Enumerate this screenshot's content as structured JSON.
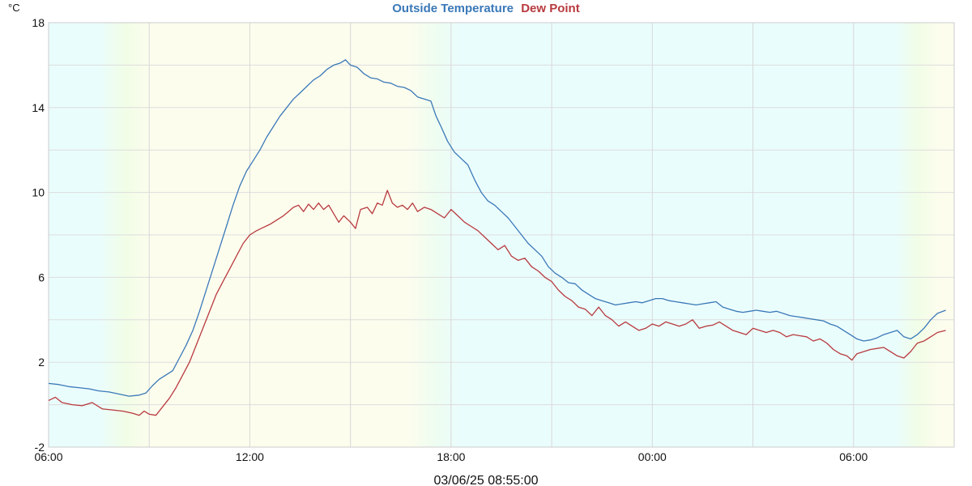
{
  "chart_data": {
    "type": "line",
    "title_parts": [
      {
        "text": "Outside Temperature",
        "color": "#3a78b8"
      },
      {
        "text": "Dew Point",
        "color": "#b83a3e"
      }
    ],
    "ylabel": "°C",
    "ylim": [
      -2,
      18
    ],
    "yticks": [
      "18",
      "14",
      "10",
      "6",
      "2",
      "-2"
    ],
    "ytick_values": [
      18,
      14,
      10,
      6,
      2,
      -2
    ],
    "xlim": [
      "06:00",
      "09:00 +1d"
    ],
    "xticks": [
      "06:00",
      "12:00",
      "18:00",
      "00:00",
      "06:00"
    ],
    "xtick_hours": [
      0,
      6,
      12,
      18,
      24
    ],
    "footer": "03/06/25 08:55:00",
    "grid": true,
    "legend": "top-center",
    "hours_span": 27,
    "x_unit": "hours since 06:00",
    "series": [
      {
        "name": "Outside Temperature",
        "color": "#3a78b8",
        "points": [
          [
            0,
            1.0
          ],
          [
            0.3,
            0.95
          ],
          [
            0.6,
            0.85
          ],
          [
            0.9,
            0.8
          ],
          [
            1.2,
            0.75
          ],
          [
            1.5,
            0.65
          ],
          [
            1.8,
            0.6
          ],
          [
            2.1,
            0.5
          ],
          [
            2.4,
            0.4
          ],
          [
            2.7,
            0.45
          ],
          [
            2.9,
            0.55
          ],
          [
            3.1,
            0.9
          ],
          [
            3.3,
            1.2
          ],
          [
            3.5,
            1.4
          ],
          [
            3.7,
            1.6
          ],
          [
            3.9,
            2.2
          ],
          [
            4.1,
            2.8
          ],
          [
            4.3,
            3.5
          ],
          [
            4.5,
            4.4
          ],
          [
            4.7,
            5.4
          ],
          [
            4.9,
            6.4
          ],
          [
            5.1,
            7.4
          ],
          [
            5.3,
            8.4
          ],
          [
            5.5,
            9.4
          ],
          [
            5.7,
            10.3
          ],
          [
            5.9,
            11.0
          ],
          [
            6.1,
            11.5
          ],
          [
            6.3,
            12.0
          ],
          [
            6.5,
            12.6
          ],
          [
            6.7,
            13.1
          ],
          [
            6.9,
            13.6
          ],
          [
            7.1,
            14.0
          ],
          [
            7.3,
            14.4
          ],
          [
            7.5,
            14.7
          ],
          [
            7.7,
            15.0
          ],
          [
            7.9,
            15.3
          ],
          [
            8.1,
            15.5
          ],
          [
            8.3,
            15.8
          ],
          [
            8.5,
            16.0
          ],
          [
            8.7,
            16.1
          ],
          [
            8.85,
            16.25
          ],
          [
            9.0,
            16.0
          ],
          [
            9.2,
            15.9
          ],
          [
            9.4,
            15.6
          ],
          [
            9.6,
            15.4
          ],
          [
            9.8,
            15.35
          ],
          [
            10.0,
            15.2
          ],
          [
            10.2,
            15.15
          ],
          [
            10.4,
            15.0
          ],
          [
            10.6,
            14.95
          ],
          [
            10.8,
            14.8
          ],
          [
            11.0,
            14.5
          ],
          [
            11.2,
            14.4
          ],
          [
            11.4,
            14.3
          ],
          [
            11.55,
            13.6
          ],
          [
            11.7,
            13.1
          ],
          [
            11.9,
            12.4
          ],
          [
            12.1,
            11.9
          ],
          [
            12.3,
            11.6
          ],
          [
            12.5,
            11.3
          ],
          [
            12.7,
            10.6
          ],
          [
            12.9,
            10.0
          ],
          [
            13.1,
            9.6
          ],
          [
            13.3,
            9.4
          ],
          [
            13.5,
            9.1
          ],
          [
            13.7,
            8.8
          ],
          [
            13.9,
            8.4
          ],
          [
            14.1,
            8.0
          ],
          [
            14.3,
            7.6
          ],
          [
            14.5,
            7.3
          ],
          [
            14.7,
            7.0
          ],
          [
            14.9,
            6.5
          ],
          [
            15.1,
            6.2
          ],
          [
            15.3,
            6.0
          ],
          [
            15.5,
            5.75
          ],
          [
            15.7,
            5.7
          ],
          [
            15.9,
            5.4
          ],
          [
            16.1,
            5.2
          ],
          [
            16.3,
            5.0
          ],
          [
            16.5,
            4.9
          ],
          [
            16.7,
            4.8
          ],
          [
            16.9,
            4.7
          ],
          [
            17.1,
            4.75
          ],
          [
            17.3,
            4.8
          ],
          [
            17.5,
            4.85
          ],
          [
            17.7,
            4.8
          ],
          [
            17.9,
            4.9
          ],
          [
            18.1,
            5.0
          ],
          [
            18.3,
            5.0
          ],
          [
            18.5,
            4.9
          ],
          [
            18.7,
            4.85
          ],
          [
            18.9,
            4.8
          ],
          [
            19.1,
            4.75
          ],
          [
            19.3,
            4.7
          ],
          [
            19.5,
            4.75
          ],
          [
            19.7,
            4.8
          ],
          [
            19.9,
            4.85
          ],
          [
            20.1,
            4.6
          ],
          [
            20.3,
            4.5
          ],
          [
            20.5,
            4.4
          ],
          [
            20.7,
            4.35
          ],
          [
            20.9,
            4.4
          ],
          [
            21.1,
            4.45
          ],
          [
            21.3,
            4.4
          ],
          [
            21.5,
            4.35
          ],
          [
            21.7,
            4.4
          ],
          [
            21.9,
            4.3
          ],
          [
            22.1,
            4.2
          ],
          [
            22.3,
            4.15
          ],
          [
            22.5,
            4.1
          ],
          [
            22.7,
            4.05
          ],
          [
            22.9,
            4.0
          ],
          [
            23.1,
            3.95
          ],
          [
            23.3,
            3.8
          ],
          [
            23.5,
            3.7
          ],
          [
            23.7,
            3.5
          ],
          [
            23.9,
            3.3
          ],
          [
            24.1,
            3.1
          ],
          [
            24.3,
            3.0
          ],
          [
            24.5,
            3.05
          ],
          [
            24.7,
            3.15
          ],
          [
            24.9,
            3.3
          ],
          [
            25.1,
            3.4
          ],
          [
            25.3,
            3.5
          ],
          [
            25.5,
            3.2
          ],
          [
            25.7,
            3.1
          ],
          [
            25.9,
            3.3
          ],
          [
            26.1,
            3.6
          ],
          [
            26.3,
            4.0
          ],
          [
            26.5,
            4.3
          ],
          [
            26.75,
            4.45
          ]
        ]
      },
      {
        "name": "Dew Point",
        "color": "#b83a3e",
        "points": [
          [
            0,
            0.2
          ],
          [
            0.2,
            0.35
          ],
          [
            0.4,
            0.1
          ],
          [
            0.7,
            0.0
          ],
          [
            1.0,
            -0.05
          ],
          [
            1.3,
            0.1
          ],
          [
            1.6,
            -0.2
          ],
          [
            1.9,
            -0.25
          ],
          [
            2.2,
            -0.3
          ],
          [
            2.5,
            -0.4
          ],
          [
            2.7,
            -0.5
          ],
          [
            2.85,
            -0.3
          ],
          [
            3.0,
            -0.45
          ],
          [
            3.2,
            -0.5
          ],
          [
            3.4,
            -0.1
          ],
          [
            3.6,
            0.3
          ],
          [
            3.8,
            0.8
          ],
          [
            4.0,
            1.4
          ],
          [
            4.2,
            2.0
          ],
          [
            4.4,
            2.8
          ],
          [
            4.6,
            3.6
          ],
          [
            4.8,
            4.4
          ],
          [
            5.0,
            5.2
          ],
          [
            5.2,
            5.8
          ],
          [
            5.4,
            6.4
          ],
          [
            5.6,
            7.0
          ],
          [
            5.8,
            7.6
          ],
          [
            6.0,
            8.0
          ],
          [
            6.2,
            8.2
          ],
          [
            6.4,
            8.35
          ],
          [
            6.6,
            8.5
          ],
          [
            6.8,
            8.7
          ],
          [
            7.0,
            8.9
          ],
          [
            7.15,
            9.1
          ],
          [
            7.3,
            9.3
          ],
          [
            7.45,
            9.4
          ],
          [
            7.6,
            9.1
          ],
          [
            7.75,
            9.45
          ],
          [
            7.9,
            9.2
          ],
          [
            8.05,
            9.5
          ],
          [
            8.2,
            9.2
          ],
          [
            8.35,
            9.4
          ],
          [
            8.5,
            9.0
          ],
          [
            8.65,
            8.6
          ],
          [
            8.8,
            8.9
          ],
          [
            9.0,
            8.6
          ],
          [
            9.15,
            8.3
          ],
          [
            9.3,
            9.2
          ],
          [
            9.5,
            9.3
          ],
          [
            9.65,
            9.0
          ],
          [
            9.8,
            9.5
          ],
          [
            9.95,
            9.4
          ],
          [
            10.1,
            10.1
          ],
          [
            10.25,
            9.5
          ],
          [
            10.4,
            9.3
          ],
          [
            10.55,
            9.4
          ],
          [
            10.7,
            9.2
          ],
          [
            10.85,
            9.5
          ],
          [
            11.0,
            9.1
          ],
          [
            11.2,
            9.3
          ],
          [
            11.4,
            9.2
          ],
          [
            11.6,
            9.0
          ],
          [
            11.8,
            8.8
          ],
          [
            12.0,
            9.2
          ],
          [
            12.2,
            8.9
          ],
          [
            12.4,
            8.6
          ],
          [
            12.6,
            8.4
          ],
          [
            12.8,
            8.2
          ],
          [
            13.0,
            7.9
          ],
          [
            13.2,
            7.6
          ],
          [
            13.4,
            7.3
          ],
          [
            13.6,
            7.5
          ],
          [
            13.8,
            7.0
          ],
          [
            14.0,
            6.8
          ],
          [
            14.2,
            6.9
          ],
          [
            14.4,
            6.5
          ],
          [
            14.6,
            6.3
          ],
          [
            14.8,
            6.0
          ],
          [
            15.0,
            5.8
          ],
          [
            15.2,
            5.4
          ],
          [
            15.4,
            5.1
          ],
          [
            15.6,
            4.9
          ],
          [
            15.8,
            4.6
          ],
          [
            16.0,
            4.5
          ],
          [
            16.2,
            4.2
          ],
          [
            16.4,
            4.6
          ],
          [
            16.6,
            4.2
          ],
          [
            16.8,
            4.0
          ],
          [
            17.0,
            3.7
          ],
          [
            17.2,
            3.9
          ],
          [
            17.4,
            3.7
          ],
          [
            17.6,
            3.5
          ],
          [
            17.8,
            3.6
          ],
          [
            18.0,
            3.8
          ],
          [
            18.2,
            3.7
          ],
          [
            18.4,
            3.9
          ],
          [
            18.6,
            3.8
          ],
          [
            18.8,
            3.7
          ],
          [
            19.0,
            3.8
          ],
          [
            19.2,
            4.0
          ],
          [
            19.4,
            3.6
          ],
          [
            19.6,
            3.7
          ],
          [
            19.8,
            3.75
          ],
          [
            20.0,
            3.9
          ],
          [
            20.2,
            3.7
          ],
          [
            20.4,
            3.5
          ],
          [
            20.6,
            3.4
          ],
          [
            20.8,
            3.3
          ],
          [
            21.0,
            3.6
          ],
          [
            21.2,
            3.5
          ],
          [
            21.4,
            3.4
          ],
          [
            21.6,
            3.5
          ],
          [
            21.8,
            3.4
          ],
          [
            22.0,
            3.2
          ],
          [
            22.2,
            3.3
          ],
          [
            22.4,
            3.25
          ],
          [
            22.6,
            3.2
          ],
          [
            22.8,
            3.0
          ],
          [
            23.0,
            3.1
          ],
          [
            23.2,
            2.9
          ],
          [
            23.4,
            2.6
          ],
          [
            23.6,
            2.4
          ],
          [
            23.8,
            2.3
          ],
          [
            23.95,
            2.1
          ],
          [
            24.1,
            2.4
          ],
          [
            24.3,
            2.5
          ],
          [
            24.5,
            2.6
          ],
          [
            24.7,
            2.65
          ],
          [
            24.9,
            2.7
          ],
          [
            25.1,
            2.5
          ],
          [
            25.3,
            2.3
          ],
          [
            25.5,
            2.2
          ],
          [
            25.7,
            2.5
          ],
          [
            25.9,
            2.9
          ],
          [
            26.1,
            3.0
          ],
          [
            26.3,
            3.2
          ],
          [
            26.5,
            3.4
          ],
          [
            26.75,
            3.5
          ]
        ]
      }
    ]
  }
}
